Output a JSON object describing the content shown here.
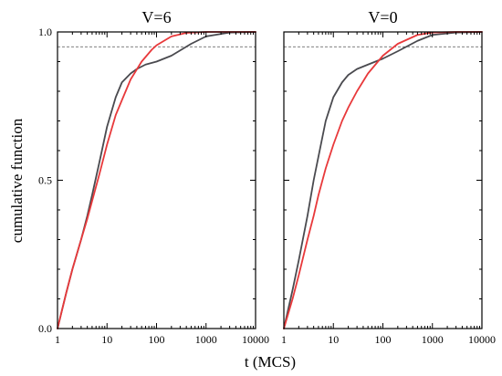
{
  "figure": {
    "ylabel": "cumulative function",
    "xlabel": "t (MCS)"
  },
  "colors": {
    "series_dark": "#4a4a4f",
    "series_red": "#e8393b",
    "reference_line": "#555555",
    "axis": "#000000"
  },
  "chart_data": [
    {
      "type": "line",
      "title": "V=6",
      "xscale": "log",
      "xlim": [
        1,
        10000
      ],
      "ylim": [
        0,
        1.0
      ],
      "xticks": [
        1,
        10,
        100,
        1000,
        10000
      ],
      "xtick_labels": [
        "1",
        "10",
        "100",
        "1000",
        "10000"
      ],
      "yticks": [
        0,
        0.5,
        1.0
      ],
      "ytick_labels": [
        "0.0",
        "0.5",
        "1.0"
      ],
      "reference_lines": [
        0.95,
        1.0
      ],
      "series": [
        {
          "color": "dark",
          "x": [
            1,
            1.5,
            2,
            3,
            4,
            5,
            7,
            10,
            15,
            20,
            30,
            40,
            60,
            100,
            200,
            500,
            1000,
            3000,
            10000
          ],
          "y": [
            0,
            0.12,
            0.2,
            0.3,
            0.38,
            0.45,
            0.56,
            0.68,
            0.78,
            0.83,
            0.86,
            0.875,
            0.89,
            0.9,
            0.92,
            0.96,
            0.985,
            0.998,
            1.0
          ]
        },
        {
          "color": "red",
          "x": [
            1,
            1.5,
            2,
            3,
            4,
            5,
            7,
            10,
            15,
            20,
            30,
            50,
            80,
            100,
            200,
            400,
            1000,
            10000
          ],
          "y": [
            0,
            0.12,
            0.2,
            0.3,
            0.37,
            0.43,
            0.52,
            0.62,
            0.72,
            0.77,
            0.84,
            0.9,
            0.94,
            0.955,
            0.985,
            0.997,
            1.0,
            1.0
          ]
        }
      ]
    },
    {
      "type": "line",
      "title": "V=0",
      "xscale": "log",
      "xlim": [
        1,
        10000
      ],
      "ylim": [
        0,
        1.0
      ],
      "xticks": [
        1,
        10,
        100,
        1000,
        10000
      ],
      "xtick_labels": [
        "1",
        "10",
        "100",
        "1000",
        "10000"
      ],
      "yticks": [
        0,
        0.5,
        1.0
      ],
      "ytick_labels": [
        "",
        "",
        ""
      ],
      "reference_lines": [
        0.95,
        1.0
      ],
      "series": [
        {
          "color": "dark",
          "x": [
            1,
            1.5,
            2,
            3,
            4,
            5,
            7,
            10,
            15,
            20,
            30,
            50,
            100,
            200,
            500,
            1000,
            3000,
            10000
          ],
          "y": [
            0,
            0.13,
            0.23,
            0.38,
            0.5,
            0.58,
            0.7,
            0.78,
            0.83,
            0.855,
            0.875,
            0.89,
            0.91,
            0.935,
            0.97,
            0.99,
            0.998,
            1.0
          ]
        },
        {
          "color": "red",
          "x": [
            1,
            1.5,
            2,
            3,
            4,
            5,
            7,
            10,
            15,
            20,
            30,
            50,
            100,
            200,
            500,
            1000,
            3000,
            10000
          ],
          "y": [
            0,
            0.1,
            0.18,
            0.3,
            0.38,
            0.45,
            0.54,
            0.62,
            0.7,
            0.745,
            0.8,
            0.86,
            0.92,
            0.96,
            0.99,
            0.998,
            1.0,
            1.0
          ]
        }
      ]
    }
  ]
}
